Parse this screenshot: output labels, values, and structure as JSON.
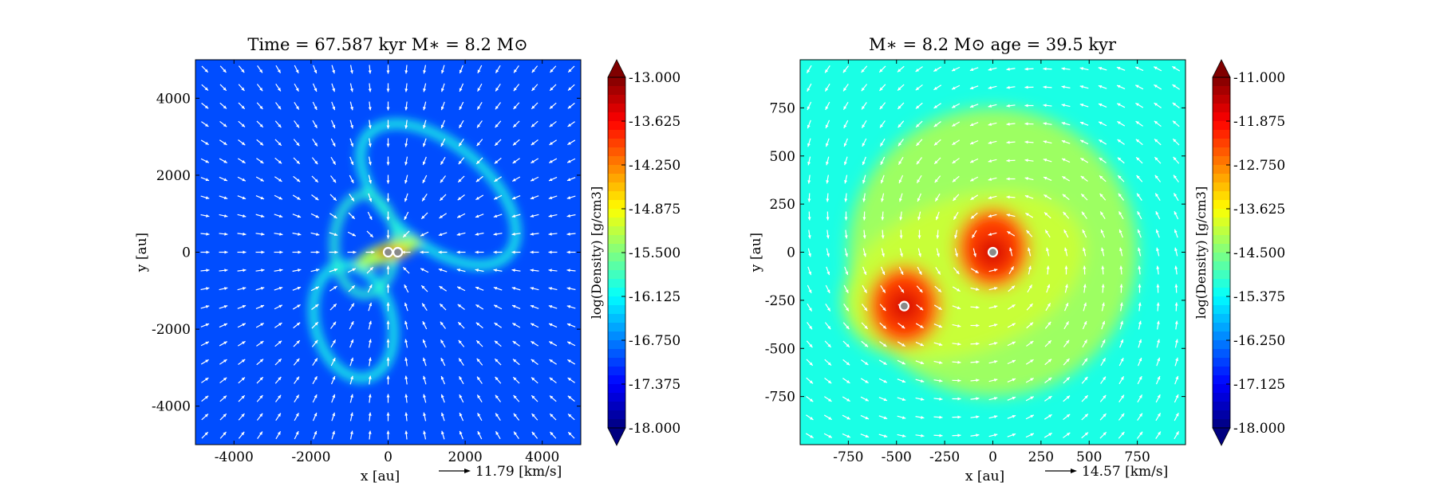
{
  "chart_data": [
    {
      "type": "heatmap",
      "title": "Time = 67.587 kyr    M$_*$ = 8.2 M$_\\odot$",
      "title_display": "Time = 67.587 kyr    M∗ = 8.2 M⊙",
      "xlabel": "x [au]",
      "ylabel": "y [au]",
      "xlim": [
        -5000,
        5000
      ],
      "ylim": [
        -5000,
        5000
      ],
      "xticks": [
        -4000,
        -2000,
        0,
        2000,
        4000
      ],
      "yticks": [
        -4000,
        -2000,
        0,
        2000,
        4000
      ],
      "xtick_labels": [
        "-4000",
        "-2000",
        "0",
        "2000",
        "4000"
      ],
      "ytick_labels": [
        "-4000",
        "-2000",
        "0",
        "2000",
        "4000"
      ],
      "quiver_key": "11.79 [km/s]",
      "colorbar": {
        "label": "log(Density) [g/cm3]",
        "min": -18.0,
        "max": -13.0,
        "ticks": [
          -13.0,
          -13.625,
          -14.25,
          -14.875,
          -15.5,
          -16.125,
          -16.75,
          -17.375,
          -18.0
        ],
        "tick_labels": [
          "-13.000",
          "-13.625",
          "-14.250",
          "-14.875",
          "-15.500",
          "-16.125",
          "-16.750",
          "-17.375",
          "-18.000"
        ]
      },
      "background_value": -17.0,
      "features": [
        {
          "kind": "ring",
          "cx": 1300,
          "cy": 1500,
          "rx": 2400,
          "ry": 1300,
          "angle": -40,
          "value": -16.0,
          "width": 220
        },
        {
          "kind": "ring",
          "cx": -900,
          "cy": -1800,
          "rx": 1000,
          "ry": 1500,
          "angle": 15,
          "value": -16.0,
          "width": 220
        },
        {
          "kind": "ring",
          "cx": -600,
          "cy": 200,
          "rx": 800,
          "ry": 1300,
          "angle": 0,
          "value": -15.9,
          "width": 200
        },
        {
          "kind": "blob",
          "cx": 0,
          "cy": 0,
          "rx": 900,
          "ry": 260,
          "angle": 20,
          "value": -15.3
        },
        {
          "kind": "blob",
          "cx": 100,
          "cy": 0,
          "rx": 450,
          "ry": 160,
          "angle": 0,
          "value": -14.5
        },
        {
          "kind": "blob",
          "cx": -50,
          "cy": 0,
          "rx": 200,
          "ry": 90,
          "angle": 0,
          "value": -13.1
        }
      ],
      "stars": [
        {
          "x": 0,
          "y": 0
        },
        {
          "x": 250,
          "y": 0
        }
      ]
    },
    {
      "type": "heatmap",
      "title": "M$_*$ = 8.2 M$_\\odot$          age = 39.5 kyr",
      "title_display": "M∗ = 8.2 M⊙          age = 39.5 kyr",
      "xlabel": "x [au]",
      "ylabel": "y [au]",
      "xlim": [
        -1000,
        1000
      ],
      "ylim": [
        -1000,
        1000
      ],
      "xticks": [
        -750,
        -500,
        -250,
        0,
        250,
        500,
        750
      ],
      "yticks": [
        -750,
        -500,
        -250,
        0,
        250,
        500,
        750
      ],
      "xtick_labels": [
        "-750",
        "-500",
        "-250",
        "0",
        "250",
        "500",
        "750"
      ],
      "ytick_labels": [
        "-750",
        "-500",
        "-250",
        "0",
        "250",
        "500",
        "750"
      ],
      "quiver_key": "14.57 [km/s]",
      "colorbar": {
        "label": "log(Density) [g/cm3]",
        "min": -18.0,
        "max": -11.0,
        "ticks": [
          -11.0,
          -11.875,
          -12.75,
          -13.625,
          -14.5,
          -15.375,
          -16.25,
          -17.125,
          -18.0
        ],
        "tick_labels": [
          "-11.000",
          "-11.875",
          "-12.750",
          "-13.625",
          "-14.500",
          "-15.375",
          "-16.250",
          "-17.125",
          "-18.000"
        ]
      },
      "background_value": -15.2,
      "features": [
        {
          "kind": "blob",
          "cx": 0,
          "cy": 0,
          "rx": 750,
          "ry": 750,
          "angle": 0,
          "value": -14.3
        },
        {
          "kind": "blob",
          "cx": -150,
          "cy": -120,
          "rx": 650,
          "ry": 400,
          "angle": 20,
          "value": -14.0
        },
        {
          "kind": "blob",
          "cx": 0,
          "cy": 20,
          "rx": 190,
          "ry": 210,
          "angle": 0,
          "value": -12.3
        },
        {
          "kind": "blob",
          "cx": -460,
          "cy": -280,
          "rx": 190,
          "ry": 210,
          "angle": 0,
          "value": -12.3
        },
        {
          "kind": "blob",
          "cx": 0,
          "cy": 0,
          "rx": 80,
          "ry": 80,
          "angle": 0,
          "value": -11.6
        },
        {
          "kind": "blob",
          "cx": -460,
          "cy": -280,
          "rx": 80,
          "ry": 80,
          "angle": 0,
          "value": -11.6
        }
      ],
      "stars": [
        {
          "x": 0,
          "y": 0
        },
        {
          "x": -460,
          "y": -280
        }
      ]
    }
  ]
}
